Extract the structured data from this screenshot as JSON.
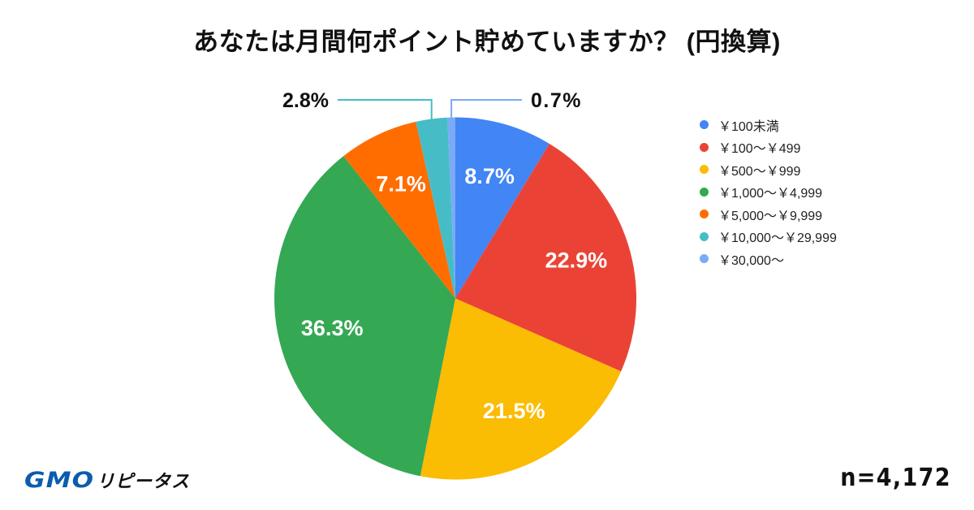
{
  "header": {
    "title": "あなたは月間何ポイント貯めていますか？ (円換算)"
  },
  "legend": {
    "items": [
      {
        "label": "￥100未満",
        "color": "#4285F4"
      },
      {
        "label": "￥100～￥499",
        "color": "#EA4335"
      },
      {
        "label": "￥500～￥999",
        "color": "#FBBC04"
      },
      {
        "label": "￥1,000～￥4,999",
        "color": "#34A853"
      },
      {
        "label": "￥5,000～￥9,999",
        "color": "#FF6D01"
      },
      {
        "label": "￥10,000～￥29,999",
        "color": "#46BDC6"
      },
      {
        "label": "￥30,000～",
        "color": "#7BAAF7"
      }
    ]
  },
  "footer": {
    "sample_size": "n=4,172",
    "logo": {
      "brand": "GMO",
      "product": "リピータス"
    }
  },
  "chart_data": {
    "type": "pie",
    "title": "あなたは月間何ポイント貯めていますか？ (円換算)",
    "categories": [
      "￥100未満",
      "￥100～￥499",
      "￥500～￥999",
      "￥1,000～￥4,999",
      "￥5,000～￥9,999",
      "￥10,000～￥29,999",
      "￥30,000～"
    ],
    "values": [
      8.7,
      22.9,
      21.5,
      36.3,
      7.1,
      2.8,
      0.7
    ],
    "labels": [
      "8.7%",
      "22.9%",
      "21.5%",
      "36.3%",
      "7.1%",
      "2.8%",
      "0.7%"
    ],
    "colors": [
      "#4285F4",
      "#EA4335",
      "#FBBC04",
      "#34A853",
      "#FF6D01",
      "#46BDC6",
      "#7BAAF7"
    ],
    "label_placement": [
      "inside",
      "inside",
      "inside",
      "inside",
      "inside",
      "outside-left",
      "outside-right"
    ],
    "unit": "%",
    "start_angle_deg": 0,
    "direction": "clockwise",
    "legend_position": "right",
    "sample_size": 4172,
    "sample_size_label": "n=4,172"
  }
}
